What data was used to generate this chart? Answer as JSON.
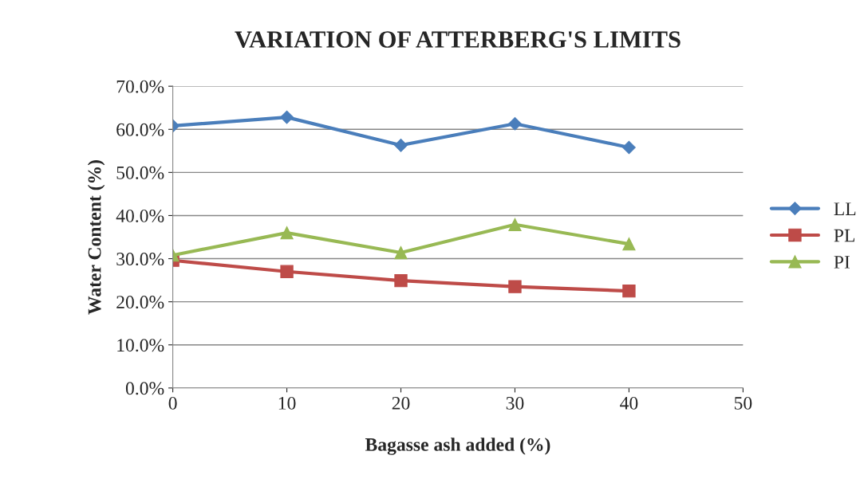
{
  "chart_data": {
    "type": "line",
    "title": "VARIATION OF ATTERBERG'S LIMITS",
    "xlabel": "Bagasse ash added (%)",
    "ylabel": "Water Content (%)",
    "x": [
      0,
      10,
      20,
      30,
      40
    ],
    "series": [
      {
        "name": "LL",
        "color": "#4a7ebb",
        "marker": "diamond",
        "values": [
          60.8,
          62.8,
          56.3,
          61.3,
          55.8
        ]
      },
      {
        "name": "PL",
        "color": "#be4b48",
        "marker": "square",
        "values": [
          29.6,
          27.0,
          24.9,
          23.5,
          22.5
        ]
      },
      {
        "name": "PI",
        "color": "#98b954",
        "marker": "triangle",
        "values": [
          30.8,
          36.0,
          31.4,
          37.9,
          33.4
        ]
      }
    ],
    "xlim": [
      0,
      50
    ],
    "xticks": [
      0,
      10,
      20,
      30,
      40,
      50
    ],
    "ylim": [
      0,
      70
    ],
    "yticks": [
      {
        "value": 0,
        "label": "0.0%"
      },
      {
        "value": 10,
        "label": "10.0%"
      },
      {
        "value": 20,
        "label": "20.0%"
      },
      {
        "value": 30,
        "label": "30.0%"
      },
      {
        "value": 40,
        "label": "40.0%"
      },
      {
        "value": 50,
        "label": "50.0%"
      },
      {
        "value": 60,
        "label": "60.0%"
      },
      {
        "value": 70,
        "label": "70.0%"
      }
    ],
    "grid": "y",
    "legend": "right",
    "line_style": "solid"
  }
}
